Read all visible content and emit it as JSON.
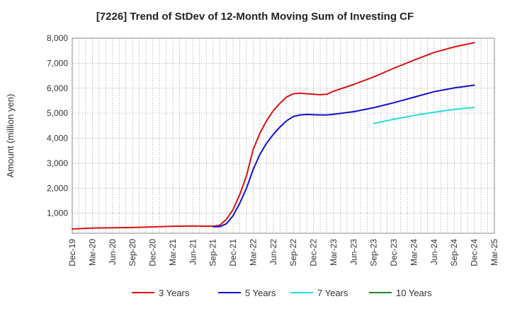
{
  "chart_data": {
    "type": "line",
    "title": "[7226]  Trend of StDev of 12-Month Moving Sum of Investing CF",
    "ylabel": "Amount (million yen)",
    "xlabel": "",
    "ylim": [
      200,
      8000
    ],
    "yticks": [
      1000,
      2000,
      3000,
      4000,
      5000,
      6000,
      7000,
      8000
    ],
    "ytick_labels": [
      "1,000",
      "2,000",
      "3,000",
      "4,000",
      "5,000",
      "6,000",
      "7,000",
      "8,000"
    ],
    "xlim": [
      "2019-12",
      "2025-03"
    ],
    "xtick_labels": [
      "Dec-19",
      "Mar-20",
      "Jun-20",
      "Sep-20",
      "Dec-20",
      "Mar-21",
      "Jun-21",
      "Sep-21",
      "Dec-21",
      "Mar-22",
      "Jun-22",
      "Sep-22",
      "Dec-22",
      "Mar-23",
      "Jun-23",
      "Sep-23",
      "Dec-23",
      "Mar-24",
      "Jun-24",
      "Sep-24",
      "Dec-24",
      "Mar-25"
    ],
    "grid": true,
    "legend_position": "bottom",
    "series": [
      {
        "name": "3 Years",
        "color": "#dd1111",
        "points": [
          [
            "2019-12",
            370
          ],
          [
            "2020-03",
            410
          ],
          [
            "2020-06",
            420
          ],
          [
            "2020-09",
            430
          ],
          [
            "2020-12",
            455
          ],
          [
            "2021-03",
            480
          ],
          [
            "2021-06",
            490
          ],
          [
            "2021-09",
            480
          ],
          [
            "2021-10",
            520
          ],
          [
            "2021-11",
            750
          ],
          [
            "2021-12",
            1150
          ],
          [
            "2022-01",
            1750
          ],
          [
            "2022-02",
            2500
          ],
          [
            "2022-03",
            3550
          ],
          [
            "2022-04",
            4200
          ],
          [
            "2022-05",
            4700
          ],
          [
            "2022-06",
            5100
          ],
          [
            "2022-07",
            5400
          ],
          [
            "2022-08",
            5650
          ],
          [
            "2022-09",
            5780
          ],
          [
            "2022-10",
            5800
          ],
          [
            "2022-11",
            5780
          ],
          [
            "2022-12",
            5760
          ],
          [
            "2023-01",
            5740
          ],
          [
            "2023-02",
            5760
          ],
          [
            "2023-03",
            5880
          ],
          [
            "2023-06",
            6150
          ],
          [
            "2023-09",
            6450
          ],
          [
            "2023-12",
            6800
          ],
          [
            "2024-03",
            7120
          ],
          [
            "2024-06",
            7430
          ],
          [
            "2024-09",
            7650
          ],
          [
            "2024-12",
            7820
          ]
        ]
      },
      {
        "name": "5 Years",
        "color": "#1111cc",
        "points": [
          [
            "2021-09",
            460
          ],
          [
            "2021-10",
            460
          ],
          [
            "2021-11",
            580
          ],
          [
            "2021-12",
            900
          ],
          [
            "2022-01",
            1400
          ],
          [
            "2022-02",
            2000
          ],
          [
            "2022-03",
            2750
          ],
          [
            "2022-04",
            3350
          ],
          [
            "2022-05",
            3800
          ],
          [
            "2022-06",
            4150
          ],
          [
            "2022-07",
            4450
          ],
          [
            "2022-08",
            4700
          ],
          [
            "2022-09",
            4870
          ],
          [
            "2022-10",
            4930
          ],
          [
            "2022-11",
            4950
          ],
          [
            "2022-12",
            4940
          ],
          [
            "2023-01",
            4930
          ],
          [
            "2023-02",
            4930
          ],
          [
            "2023-03",
            4960
          ],
          [
            "2023-06",
            5060
          ],
          [
            "2023-09",
            5220
          ],
          [
            "2023-12",
            5420
          ],
          [
            "2024-03",
            5640
          ],
          [
            "2024-06",
            5860
          ],
          [
            "2024-09",
            6010
          ],
          [
            "2024-12",
            6120
          ]
        ]
      },
      {
        "name": "7 Years",
        "color": "#22dddd",
        "points": [
          [
            "2023-09",
            4590
          ],
          [
            "2023-12",
            4760
          ],
          [
            "2024-03",
            4910
          ],
          [
            "2024-06",
            5040
          ],
          [
            "2024-09",
            5150
          ],
          [
            "2024-12",
            5230
          ]
        ]
      },
      {
        "name": "10 Years",
        "color": "#228822",
        "points": []
      }
    ]
  }
}
